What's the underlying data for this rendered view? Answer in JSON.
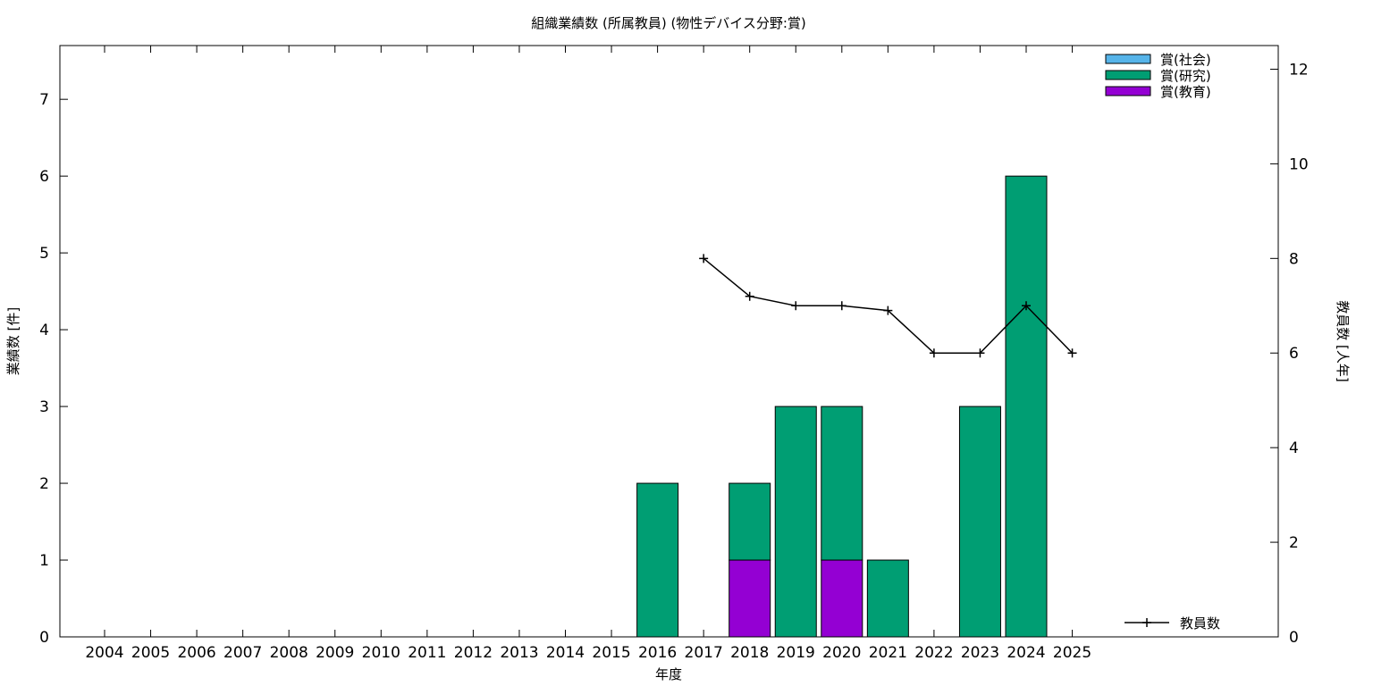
{
  "chart_data": {
    "type": "bar",
    "title": "組織業績数 (所属教員) (物性デバイス分野:賞)",
    "xlabel": "年度",
    "ylabel": "業績数 [件]",
    "y2label": "教員数 [人年]",
    "categories": [
      "2004",
      "2005",
      "2006",
      "2007",
      "2008",
      "2009",
      "2010",
      "2011",
      "2012",
      "2013",
      "2014",
      "2015",
      "2016",
      "2017",
      "2018",
      "2019",
      "2020",
      "2021",
      "2022",
      "2023",
      "2024",
      "2025"
    ],
    "ylim": [
      0,
      7.7
    ],
    "y2lim": [
      0,
      12.5
    ],
    "yticks": [
      0,
      1,
      2,
      3,
      4,
      5,
      6,
      7
    ],
    "y2ticks": [
      0,
      2,
      4,
      6,
      8,
      10,
      12
    ],
    "stacked": true,
    "series": [
      {
        "name": "賞(教育)",
        "color": "#9400d3",
        "values": [
          0,
          0,
          0,
          0,
          0,
          0,
          0,
          0,
          0,
          0,
          0,
          0,
          0,
          0,
          1,
          0,
          1,
          0,
          0,
          0,
          0,
          0
        ]
      },
      {
        "name": "賞(研究)",
        "color": "#009e73",
        "values": [
          0,
          0,
          0,
          0,
          0,
          0,
          0,
          0,
          0,
          0,
          0,
          0,
          2,
          0,
          1,
          3,
          2,
          1,
          0,
          3,
          6,
          0
        ]
      },
      {
        "name": "賞(社会)",
        "color": "#56b4e9",
        "values": [
          0,
          0,
          0,
          0,
          0,
          0,
          0,
          0,
          0,
          0,
          0,
          0,
          0,
          0,
          0,
          0,
          0,
          0,
          0,
          0,
          0,
          0
        ]
      }
    ],
    "line_series": {
      "name": "教員数",
      "axis": "y2",
      "color": "#000000",
      "x": [
        "2017",
        "2018",
        "2019",
        "2020",
        "2021",
        "2022",
        "2023",
        "2024",
        "2025"
      ],
      "values": [
        8.0,
        7.2,
        7.0,
        7.0,
        6.9,
        6.0,
        6.0,
        7.0,
        6.0
      ]
    },
    "legend": {
      "bars_position": "top-right",
      "line_position": "bottom-right"
    },
    "grid": false
  }
}
